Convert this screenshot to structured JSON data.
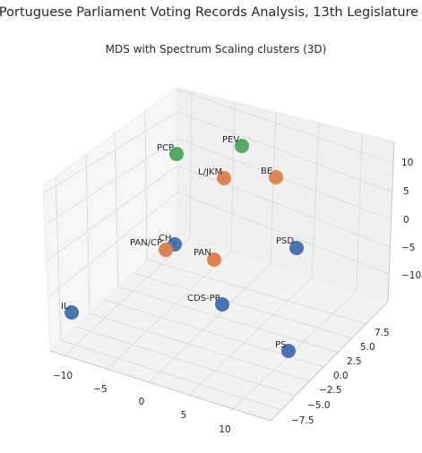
{
  "suptitle": "Portuguese Parliament Voting Records Analysis, 13th Legislature",
  "colors": {
    "cluster_0": "#4c72b0",
    "cluster_1": "#dd8452",
    "cluster_2": "#55a868"
  },
  "chart_data": {
    "type": "scatter",
    "projection": "3d",
    "title": "MDS with Spectrum Scaling clusters (3D)",
    "grid": true,
    "x_ticks": [
      "−10",
      "−5",
      "0",
      "5",
      "10"
    ],
    "y_ticks": [
      "−7.5",
      "−5.0",
      "−2.5",
      "0.0",
      "2.5",
      "5.0",
      "7.5"
    ],
    "z_ticks": [
      "−10",
      "−5",
      "0",
      "5",
      "10"
    ],
    "points": [
      {
        "label": "PCP",
        "cluster": 2
      },
      {
        "label": "PEV",
        "cluster": 2
      },
      {
        "label": "L/JKM",
        "cluster": 1
      },
      {
        "label": "BE",
        "cluster": 1
      },
      {
        "label": "CH",
        "cluster": 0
      },
      {
        "label": "PAN/CP",
        "cluster": 1
      },
      {
        "label": "PAN",
        "cluster": 1
      },
      {
        "label": "PSD",
        "cluster": 0
      },
      {
        "label": "IL",
        "cluster": 0
      },
      {
        "label": "CDS-PP",
        "cluster": 0
      },
      {
        "label": "PS",
        "cluster": 0
      }
    ]
  }
}
